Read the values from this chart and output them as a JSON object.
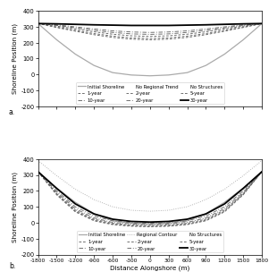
{
  "x": [
    -1800,
    -1500,
    -1200,
    -900,
    -600,
    -300,
    0,
    300,
    600,
    900,
    1200,
    1500,
    1800
  ],
  "initial_shoreline_a": [
    320,
    218,
    128,
    57,
    12,
    -3,
    -8,
    -3,
    12,
    57,
    128,
    218,
    320
  ],
  "year1_a": [
    320,
    295,
    272,
    250,
    233,
    222,
    218,
    222,
    233,
    250,
    272,
    295,
    320
  ],
  "year2_a": [
    320,
    298,
    277,
    257,
    241,
    230,
    226,
    230,
    241,
    257,
    277,
    298,
    320
  ],
  "year5_a": [
    320,
    304,
    286,
    268,
    253,
    243,
    239,
    243,
    253,
    268,
    286,
    304,
    320
  ],
  "year10_a": [
    320,
    308,
    293,
    277,
    264,
    255,
    252,
    255,
    264,
    277,
    293,
    308,
    320
  ],
  "year20_a": [
    320,
    312,
    299,
    286,
    274,
    267,
    264,
    267,
    274,
    286,
    299,
    312,
    320
  ],
  "year30_a": [
    320,
    318,
    315,
    312,
    310,
    308,
    308,
    308,
    310,
    312,
    315,
    318,
    320
  ],
  "initial_shoreline_b": [
    320,
    218,
    128,
    57,
    12,
    -3,
    -8,
    -3,
    12,
    57,
    128,
    218,
    320
  ],
  "regional_contour_b": [
    390,
    295,
    210,
    145,
    100,
    78,
    72,
    78,
    100,
    145,
    210,
    295,
    390
  ],
  "year1_b": [
    320,
    175,
    68,
    12,
    -12,
    -22,
    -25,
    -22,
    -12,
    12,
    68,
    175,
    320
  ],
  "year2_b": [
    320,
    178,
    72,
    16,
    -9,
    -20,
    -23,
    -20,
    -9,
    16,
    72,
    178,
    320
  ],
  "year5_b": [
    320,
    183,
    79,
    22,
    -4,
    -15,
    -18,
    -15,
    -4,
    22,
    79,
    183,
    320
  ],
  "year10_b": [
    320,
    190,
    88,
    30,
    2,
    -8,
    -12,
    -8,
    2,
    30,
    88,
    190,
    320
  ],
  "year20_b": [
    320,
    200,
    100,
    42,
    12,
    0,
    -4,
    0,
    12,
    42,
    100,
    200,
    320
  ],
  "year30_b": [
    320,
    215,
    118,
    55,
    22,
    8,
    4,
    8,
    22,
    55,
    118,
    215,
    320
  ],
  "ylim": [
    -200,
    400
  ],
  "xlim": [
    -1800,
    1800
  ],
  "xticks": [
    -1800,
    -1500,
    -1200,
    -900,
    -600,
    -300,
    0,
    300,
    600,
    900,
    1200,
    1500,
    1800
  ],
  "yticks": [
    -200,
    -100,
    0,
    100,
    200,
    300,
    400
  ],
  "xlabel": "Distance Alongshore (m)",
  "ylabel": "Shoreline Position (m)",
  "color_initial": "#aaaaaa",
  "color_30yr": "#000000",
  "color_dashed": "#666666",
  "label_a": "a.",
  "label_b": "b."
}
